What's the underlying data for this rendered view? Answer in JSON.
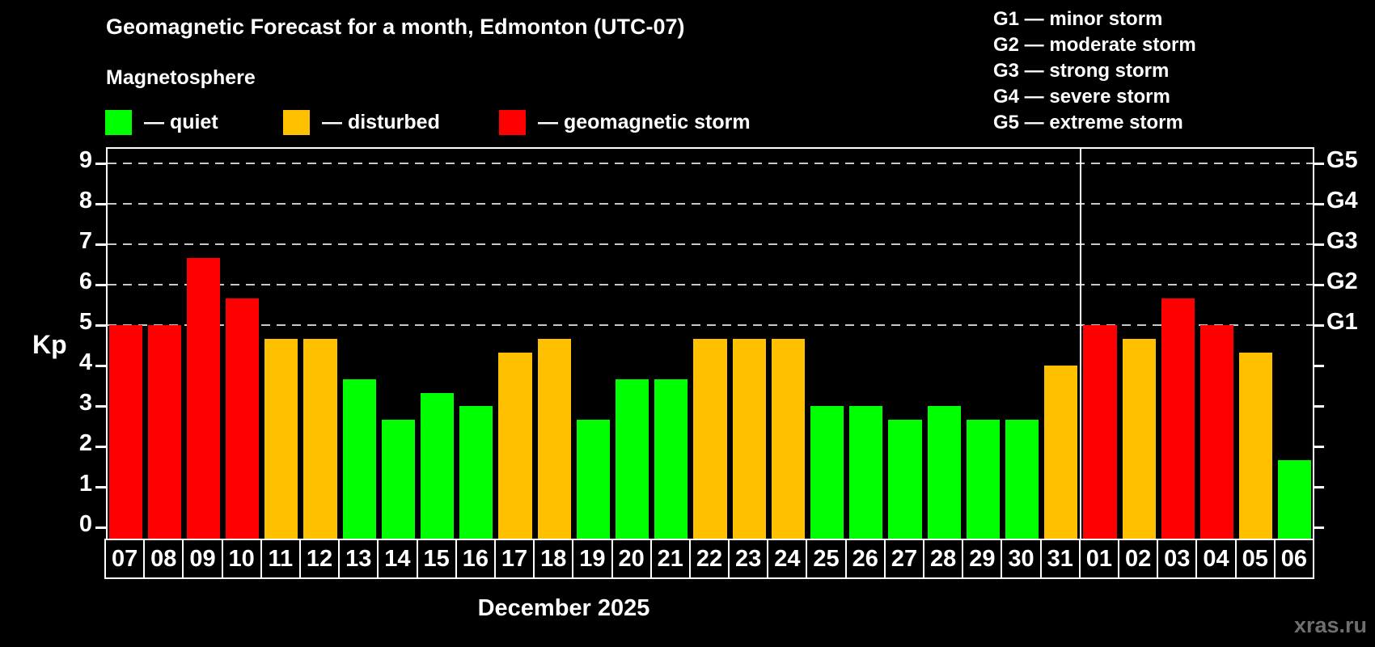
{
  "page": {
    "title": "Geomagnetic Forecast for a month, Edmonton (UTC-07)",
    "subtitle": "Magnetosphere",
    "month_label": "December 2025",
    "watermark": "xras.ru"
  },
  "legend": {
    "items": [
      {
        "key": "quiet",
        "label": "— quiet",
        "color": "#00ff00"
      },
      {
        "key": "disturbed",
        "label": "— disturbed",
        "color": "#ffc000"
      },
      {
        "key": "storm",
        "label": "— geomagnetic storm",
        "color": "#ff0000"
      }
    ]
  },
  "g_legend": {
    "lines": [
      "G1 — minor storm",
      "G2 — moderate storm",
      "G3 — strong storm",
      "G4 — severe storm",
      "G5 — extreme storm"
    ]
  },
  "chart_data": {
    "type": "bar",
    "title": "Geomagnetic Forecast for a month, Edmonton (UTC-07)",
    "subtitle": "Magnetosphere",
    "xlabel": "December 2025",
    "ylabel": "Kp",
    "ylim": [
      0,
      9
    ],
    "y_ticks": [
      0,
      1,
      2,
      3,
      4,
      5,
      6,
      7,
      8,
      9
    ],
    "gridlines_kp": [
      5,
      6,
      7,
      8,
      9
    ],
    "grid": "dashed horizontal at storm levels only",
    "legend_position": "top-left",
    "right_axis_labels": [
      {
        "kp": 5,
        "text": "G1"
      },
      {
        "kp": 6,
        "text": "G2"
      },
      {
        "kp": 7,
        "text": "G3"
      },
      {
        "kp": 8,
        "text": "G4"
      },
      {
        "kp": 9,
        "text": "G5"
      }
    ],
    "month_boundary_index": 25,
    "categories": [
      "07",
      "08",
      "09",
      "10",
      "11",
      "12",
      "13",
      "14",
      "15",
      "16",
      "17",
      "18",
      "19",
      "20",
      "21",
      "22",
      "23",
      "24",
      "25",
      "26",
      "27",
      "28",
      "29",
      "30",
      "31",
      "01",
      "02",
      "03",
      "04",
      "05",
      "06"
    ],
    "values": [
      5,
      5,
      6.67,
      5.67,
      4.67,
      4.67,
      3.67,
      2.67,
      3.33,
      3,
      4.33,
      4.67,
      2.67,
      3.67,
      3.67,
      4.67,
      4.67,
      4.67,
      3,
      3,
      2.67,
      3,
      2.67,
      2.67,
      4,
      5,
      4.67,
      5.67,
      5,
      4.33,
      1.67
    ],
    "states": [
      "storm",
      "storm",
      "storm",
      "storm",
      "disturbed",
      "disturbed",
      "quiet",
      "quiet",
      "quiet",
      "quiet",
      "disturbed",
      "disturbed",
      "quiet",
      "quiet",
      "quiet",
      "disturbed",
      "disturbed",
      "disturbed",
      "quiet",
      "quiet",
      "quiet",
      "quiet",
      "quiet",
      "quiet",
      "disturbed",
      "storm",
      "disturbed",
      "storm",
      "storm",
      "disturbed",
      "quiet"
    ],
    "colors": {
      "quiet": "#00ff00",
      "disturbed": "#ffc000",
      "storm": "#ff0000"
    }
  }
}
